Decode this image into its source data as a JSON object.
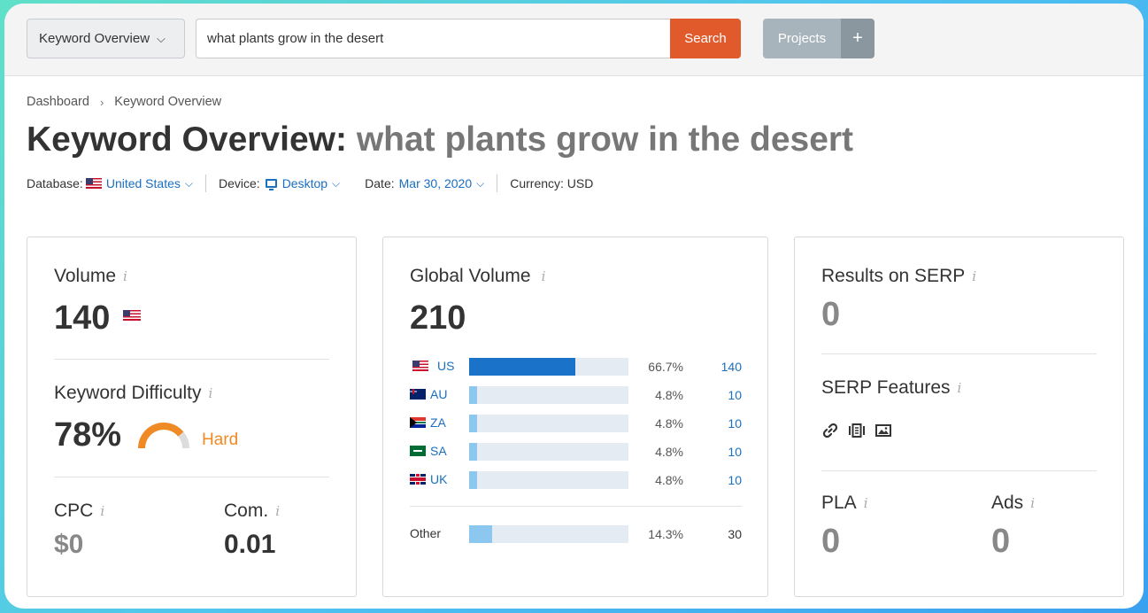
{
  "toolbar": {
    "tool_select": "Keyword Overview",
    "search_value": "what plants grow in the desert",
    "search_button": "Search",
    "projects_button": "Projects",
    "plus_button": "+"
  },
  "breadcrumb": [
    "Dashboard",
    "Keyword Overview"
  ],
  "title": {
    "prefix": "Keyword Overview:",
    "keyword": "what plants grow in the desert"
  },
  "filters": {
    "database_label": "Database:",
    "database_value": "United States",
    "device_label": "Device:",
    "device_value": "Desktop",
    "date_label": "Date:",
    "date_value": "Mar 30, 2020",
    "currency": "Currency: USD"
  },
  "volume_card": {
    "volume_label": "Volume",
    "volume_value": "140",
    "kd_label": "Keyword Difficulty",
    "kd_value": "78%",
    "kd_fraction": 0.78,
    "kd_level": "Hard",
    "cpc_label": "CPC",
    "cpc_value": "$0",
    "com_label": "Com.",
    "com_value": "0.01"
  },
  "global_card": {
    "label": "Global Volume",
    "value": "210",
    "rows": [
      {
        "country": "US",
        "flag": "flag-us",
        "pct": "66.7%",
        "share": 0.667,
        "count": "140"
      },
      {
        "country": "AU",
        "flag": "flag-au",
        "pct": "4.8%",
        "share": 0.048,
        "count": "10"
      },
      {
        "country": "ZA",
        "flag": "flag-za",
        "pct": "4.8%",
        "share": 0.048,
        "count": "10"
      },
      {
        "country": "SA",
        "flag": "flag-sa",
        "pct": "4.8%",
        "share": 0.048,
        "count": "10"
      },
      {
        "country": "UK",
        "flag": "flag-uk",
        "pct": "4.8%",
        "share": 0.048,
        "count": "10"
      }
    ],
    "other": {
      "label": "Other",
      "pct": "14.3%",
      "share": 0.143,
      "count": "30"
    }
  },
  "serp_card": {
    "results_label": "Results on SERP",
    "results_value": "0",
    "features_label": "SERP Features",
    "feature_icons": [
      "link-icon",
      "carousel-icon",
      "image-icon"
    ],
    "pla_label": "PLA",
    "pla_value": "0",
    "ads_label": "Ads",
    "ads_value": "0"
  },
  "colors": {
    "search_button": "#e05a2b",
    "link": "#1a6fc0",
    "difficulty_hard": "#f08a24",
    "bar_primary": "#1a73c8",
    "bar_light": "#8cc7ef"
  }
}
